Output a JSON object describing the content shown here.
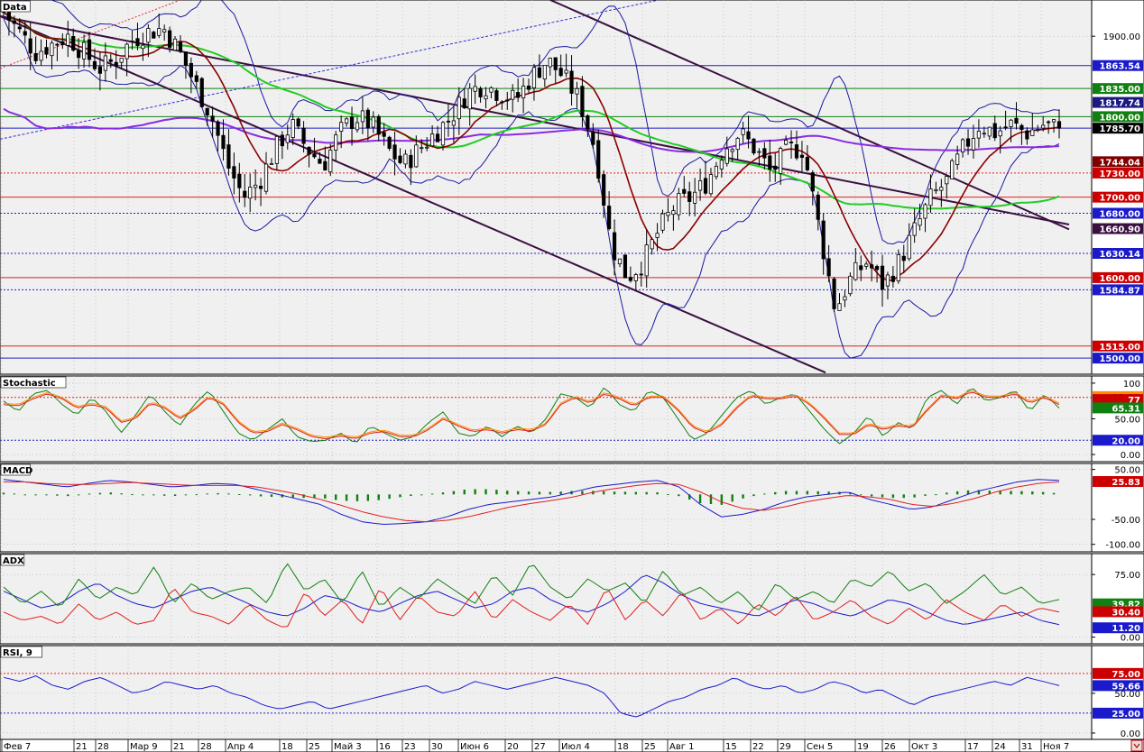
{
  "colors": {
    "bg": "#f0f0f0",
    "grid": "#b0b0b0",
    "candle_up": "#ffffff",
    "candle_down": "#000000",
    "bollinger": "#1a1aa0",
    "ma_fast": "#8b0000",
    "ma_green": "#22cc22",
    "ma_purple": "#8a2be2",
    "trend": "#3a1040",
    "blue_line": "#2020c0",
    "red_line": "#e02020",
    "green_line": "#108010"
  },
  "x_axis": {
    "labels": [
      "Фев 7",
      "21",
      "28",
      "Мар 9",
      "21",
      "28",
      "Апр 4",
      "18",
      "25",
      "Май 3",
      "16",
      "23",
      "30",
      "Июн 6",
      "20",
      "27",
      "Июл 4",
      "18",
      "25",
      "Авг 1",
      "15",
      "22",
      "29",
      "Сен 5",
      "19",
      "26",
      "Окт 3",
      "17",
      "24",
      "31",
      "Ноя 7"
    ],
    "label_x": [
      4,
      84,
      108,
      144,
      192,
      222,
      252,
      312,
      342,
      370,
      420,
      448,
      478,
      510,
      562,
      592,
      622,
      684,
      714,
      742,
      804,
      834,
      864,
      894,
      950,
      980,
      1010,
      1072,
      1102,
      1132,
      1156
    ]
  },
  "panels": [
    {
      "id": "price",
      "title": "Data",
      "ymin": 1480,
      "ymax": 1945,
      "ticks": [
        {
          "v": 1900,
          "label": "1900.00"
        }
      ],
      "hlines": [
        {
          "v": 1863.54,
          "color": "blue_line",
          "style": "solid"
        },
        {
          "v": 1835.0,
          "color": "green_line",
          "style": "solid"
        },
        {
          "v": 1800.0,
          "color": "green_line",
          "style": "solid"
        },
        {
          "v": 1785.7,
          "color": "blue_line",
          "style": "solid"
        },
        {
          "v": 1730.0,
          "color": "red_line",
          "style": "dotted"
        },
        {
          "v": 1700.0,
          "color": "red_line",
          "style": "solid"
        },
        {
          "v": 1680.0,
          "color": "blue_line",
          "style": "dotted"
        },
        {
          "v": 1630.14,
          "color": "blue_line",
          "style": "dotted"
        },
        {
          "v": 1600.0,
          "color": "red_line",
          "style": "solid"
        },
        {
          "v": 1584.87,
          "color": "blue_line",
          "style": "dotted"
        },
        {
          "v": 1515.0,
          "color": "red_line",
          "style": "solid"
        },
        {
          "v": 1500.0,
          "color": "blue_line",
          "style": "solid"
        }
      ],
      "tags": [
        {
          "v": 1863.54,
          "label": "1863.54",
          "bg": "#1a1acc",
          "fg": "#ffffff"
        },
        {
          "v": 1835.0,
          "label": "1835.00",
          "bg": "#108010",
          "fg": "#ffffff"
        },
        {
          "v": 1817.74,
          "label": "1817.74",
          "bg": "#1a1a80",
          "fg": "#ffffff"
        },
        {
          "v": 1800.0,
          "label": "1800.00",
          "bg": "#108010",
          "fg": "#ffffff"
        },
        {
          "v": 1785.7,
          "label": "1785.70",
          "bg": "#000000",
          "fg": "#ffffff"
        },
        {
          "v": 1744.04,
          "label": "1744.04",
          "bg": "#800000",
          "fg": "#ffffff"
        },
        {
          "v": 1730.0,
          "label": "1730.00",
          "bg": "#cc0000",
          "fg": "#ffffff"
        },
        {
          "v": 1700.0,
          "label": "1700.00",
          "bg": "#cc0000",
          "fg": "#ffffff"
        },
        {
          "v": 1680.0,
          "label": "1680.00",
          "bg": "#1a1acc",
          "fg": "#ffffff"
        },
        {
          "v": 1660.9,
          "label": "1660.90",
          "bg": "#3a1040",
          "fg": "#ffffff"
        },
        {
          "v": 1630.14,
          "label": "1630.14",
          "bg": "#1a1acc",
          "fg": "#ffffff"
        },
        {
          "v": 1600.0,
          "label": "1600.00",
          "bg": "#cc0000",
          "fg": "#ffffff"
        },
        {
          "v": 1584.87,
          "label": "1584.87",
          "bg": "#1a1acc",
          "fg": "#ffffff"
        },
        {
          "v": 1515.0,
          "label": "1515.00",
          "bg": "#cc0000",
          "fg": "#ffffff"
        },
        {
          "v": 1500.0,
          "label": "1500.00",
          "bg": "#1a1acc",
          "fg": "#ffffff"
        }
      ]
    },
    {
      "id": "stochastic",
      "title": "Stochastic",
      "ymin": -10,
      "ymax": 110,
      "ticks": [
        {
          "v": 100,
          "label": "100"
        },
        {
          "v": 50,
          "label": "50.00"
        },
        {
          "v": 0,
          "label": "0.00"
        }
      ],
      "hlines": [
        {
          "v": 80,
          "color": "red_line",
          "style": "dotted"
        },
        {
          "v": 20,
          "color": "blue_line",
          "style": "dotted"
        }
      ],
      "tags": [
        {
          "v": 81.12,
          "label": "81.12",
          "bg": "#ff8c00",
          "fg": "#000000"
        },
        {
          "v": 77.0,
          "label": "77",
          "bg": "#cc0000",
          "fg": "#ffffff"
        },
        {
          "v": 65.31,
          "label": "65.31",
          "bg": "#108010",
          "fg": "#ffffff"
        },
        {
          "v": 20,
          "label": "20.00",
          "bg": "#1a1acc",
          "fg": "#ffffff"
        }
      ]
    },
    {
      "id": "macd",
      "title": "MACD",
      "ymin": -115,
      "ymax": 62,
      "ticks": [
        {
          "v": 50,
          "label": "50.00"
        },
        {
          "v": -50,
          "label": "-50.00"
        },
        {
          "v": -100,
          "label": "-100.00"
        }
      ],
      "hlines": [],
      "tags": [
        {
          "v": 25.83,
          "label": "25.83",
          "bg": "#cc0000",
          "fg": "#ffffff"
        }
      ]
    },
    {
      "id": "adx",
      "title": "ADX",
      "ymin": -8,
      "ymax": 100,
      "ticks": [
        {
          "v": 75,
          "label": "75.00"
        },
        {
          "v": 0,
          "label": "0.00"
        }
      ],
      "hlines": [],
      "tags": [
        {
          "v": 39.82,
          "label": "39.82",
          "bg": "#108010",
          "fg": "#ffffff"
        },
        {
          "v": 30.4,
          "label": "30.40",
          "bg": "#cc0000",
          "fg": "#ffffff"
        },
        {
          "v": 11.2,
          "label": "11.20",
          "bg": "#1a1acc",
          "fg": "#ffffff"
        }
      ]
    },
    {
      "id": "rsi",
      "title": "RSI, 9",
      "ymin": -8,
      "ymax": 110,
      "ticks": [
        {
          "v": 50,
          "label": "50.00"
        },
        {
          "v": 0,
          "label": "0.00"
        }
      ],
      "hlines": [
        {
          "v": 75,
          "color": "red_line",
          "style": "dotted"
        },
        {
          "v": 25,
          "color": "blue_line",
          "style": "dotted"
        }
      ],
      "tags": [
        {
          "v": 75,
          "label": "75.00",
          "bg": "#cc0000",
          "fg": "#ffffff"
        },
        {
          "v": 59.66,
          "label": "59.66",
          "bg": "#1a1acc",
          "fg": "#ffffff"
        },
        {
          "v": 25,
          "label": "25.00",
          "bg": "#1a1acc",
          "fg": "#ffffff"
        }
      ]
    }
  ],
  "chart_data": {
    "type": "line",
    "series_note_free": true,
    "price_anchor": [
      1930,
      1905,
      1880,
      1890,
      1900,
      1880,
      1860,
      1870,
      1895,
      1905,
      1910,
      1880,
      1840,
      1800,
      1740,
      1700,
      1720,
      1760,
      1790,
      1760,
      1740,
      1780,
      1800,
      1790,
      1760,
      1740,
      1760,
      1780,
      1800,
      1830,
      1840,
      1830,
      1820,
      1850,
      1870,
      1850,
      1820,
      1760,
      1640,
      1600,
      1620,
      1660,
      1690,
      1700,
      1720,
      1760,
      1780,
      1760,
      1730,
      1760,
      1760,
      1660,
      1560,
      1600,
      1620,
      1590,
      1620,
      1660,
      1700,
      1720,
      1760,
      1790,
      1780,
      1790,
      1780,
      1790,
      1785.7
    ],
    "stoch_k": [
      75,
      60,
      85,
      90,
      70,
      55,
      80,
      60,
      30,
      55,
      85,
      60,
      40,
      70,
      90,
      60,
      30,
      20,
      35,
      50,
      25,
      18,
      20,
      30,
      15,
      40,
      30,
      20,
      25,
      45,
      60,
      30,
      25,
      40,
      25,
      40,
      30,
      50,
      85,
      80,
      65,
      95,
      70,
      60,
      90,
      80,
      50,
      20,
      30,
      55,
      80,
      90,
      70,
      80,
      85,
      60,
      35,
      15,
      30,
      55,
      25,
      45,
      35,
      80,
      90,
      70,
      95,
      75,
      80,
      90,
      60,
      85,
      65
    ],
    "stoch_d": [
      70,
      68,
      78,
      85,
      78,
      65,
      70,
      65,
      45,
      50,
      72,
      65,
      50,
      62,
      80,
      70,
      45,
      30,
      32,
      42,
      35,
      25,
      22,
      26,
      22,
      30,
      32,
      25,
      25,
      35,
      50,
      40,
      32,
      35,
      30,
      35,
      33,
      42,
      70,
      80,
      72,
      85,
      78,
      68,
      80,
      80,
      62,
      38,
      30,
      42,
      65,
      82,
      78,
      78,
      82,
      70,
      50,
      28,
      28,
      42,
      35,
      40,
      38,
      62,
      82,
      78,
      88,
      80,
      80,
      85,
      72,
      80,
      70
    ],
    "macd_line": [
      30,
      25,
      20,
      15,
      22,
      28,
      25,
      20,
      15,
      18,
      22,
      20,
      10,
      0,
      -10,
      -20,
      -40,
      -55,
      -60,
      -58,
      -55,
      -45,
      -30,
      -20,
      -15,
      -10,
      -5,
      5,
      15,
      20,
      25,
      28,
      15,
      -20,
      -45,
      -40,
      -30,
      -15,
      -5,
      0,
      5,
      -10,
      -20,
      -30,
      -25,
      -10,
      5,
      15,
      25,
      30,
      28
    ],
    "macd_signal": [
      25,
      25,
      22,
      20,
      20,
      22,
      24,
      22,
      20,
      18,
      18,
      18,
      15,
      8,
      0,
      -10,
      -22,
      -35,
      -45,
      -52,
      -55,
      -52,
      -45,
      -35,
      -25,
      -18,
      -12,
      -5,
      5,
      12,
      18,
      22,
      20,
      5,
      -15,
      -28,
      -32,
      -25,
      -15,
      -8,
      -2,
      -5,
      -10,
      -20,
      -24,
      -18,
      -8,
      5,
      15,
      22,
      25
    ],
    "adx_plus": [
      60,
      40,
      55,
      35,
      70,
      45,
      60,
      50,
      85,
      40,
      65,
      45,
      55,
      60,
      40,
      90,
      55,
      70,
      40,
      80,
      35,
      60,
      45,
      70,
      55,
      40,
      75,
      50,
      90,
      60,
      45,
      70,
      55,
      65,
      40,
      80,
      50,
      60,
      40,
      55,
      30,
      65,
      45,
      55,
      40,
      70,
      60,
      80,
      55,
      65,
      40,
      55,
      75,
      50,
      60,
      40,
      45
    ],
    "adx_minus": [
      30,
      20,
      25,
      15,
      40,
      20,
      30,
      15,
      20,
      60,
      30,
      25,
      15,
      40,
      20,
      10,
      55,
      25,
      45,
      15,
      60,
      20,
      50,
      30,
      25,
      55,
      20,
      45,
      30,
      20,
      40,
      15,
      60,
      20,
      45,
      25,
      55,
      20,
      35,
      15,
      40,
      25,
      50,
      20,
      30,
      45,
      25,
      15,
      35,
      20,
      45,
      30,
      20,
      40,
      25,
      35,
      30
    ],
    "adx_line": [
      55,
      45,
      35,
      40,
      55,
      65,
      50,
      40,
      35,
      45,
      55,
      60,
      50,
      40,
      30,
      25,
      35,
      50,
      45,
      35,
      30,
      40,
      50,
      55,
      45,
      35,
      40,
      55,
      60,
      45,
      35,
      30,
      40,
      55,
      75,
      65,
      50,
      40,
      35,
      30,
      25,
      35,
      45,
      40,
      30,
      25,
      35,
      45,
      40,
      30,
      20,
      15,
      20,
      25,
      30,
      20,
      15
    ],
    "rsi": [
      70,
      65,
      72,
      60,
      55,
      65,
      70,
      60,
      50,
      55,
      65,
      60,
      55,
      60,
      50,
      45,
      35,
      30,
      35,
      40,
      30,
      35,
      40,
      45,
      50,
      55,
      60,
      50,
      55,
      65,
      60,
      55,
      60,
      65,
      70,
      65,
      60,
      50,
      25,
      20,
      30,
      40,
      45,
      55,
      60,
      70,
      60,
      55,
      60,
      50,
      55,
      65,
      60,
      50,
      55,
      45,
      35,
      45,
      50,
      55,
      60,
      65,
      60,
      70,
      65,
      59.66
    ]
  }
}
